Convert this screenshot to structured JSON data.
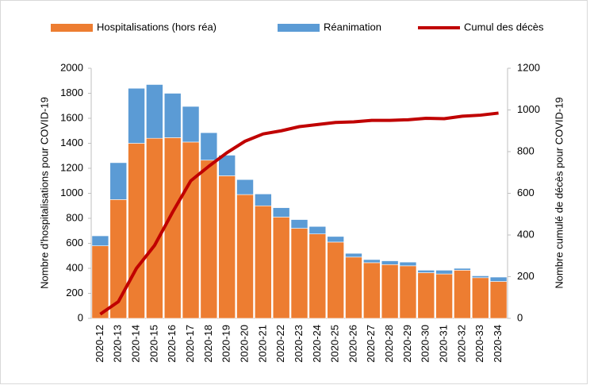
{
  "chart_data": {
    "type": "combo",
    "categories": [
      "2020-12",
      "2020-13",
      "2020-14",
      "2020-15",
      "2020-16",
      "2020-17",
      "2020-18",
      "2020-19",
      "2020-20",
      "2020-21",
      "2020-22",
      "2020-23",
      "2020-24",
      "2020-25",
      "2020-26",
      "2020-27",
      "2020-28",
      "2020-29",
      "2020-30",
      "2020-31",
      "2020-32",
      "2020-33",
      "2020-34"
    ],
    "series": [
      {
        "name": "Hospitalisations (hors réa)",
        "type": "bar",
        "color": "#ed7d31",
        "values": [
          580,
          950,
          1400,
          1440,
          1445,
          1410,
          1265,
          1140,
          990,
          900,
          810,
          720,
          675,
          610,
          490,
          445,
          430,
          420,
          365,
          355,
          385,
          325,
          295
        ]
      },
      {
        "name": "Réanimation",
        "type": "bar",
        "color": "#5b9bd5",
        "values": [
          80,
          295,
          440,
          430,
          355,
          285,
          220,
          165,
          120,
          95,
          75,
          70,
          60,
          45,
          30,
          25,
          30,
          30,
          20,
          30,
          15,
          15,
          35
        ]
      },
      {
        "name": "Cumul des décès",
        "type": "line",
        "axis": "y2",
        "color": "#c00000",
        "values": [
          20,
          80,
          240,
          350,
          510,
          660,
          730,
          795,
          850,
          885,
          900,
          920,
          930,
          940,
          943,
          950,
          950,
          953,
          960,
          958,
          970,
          975,
          985
        ]
      }
    ],
    "y_label": "Nombre d'hospitalisations pour COVID-19",
    "y2_label": "Nombre cumulé de décès pour COVID-19",
    "ylim": [
      0,
      2000
    ],
    "yticks": [
      0,
      200,
      400,
      600,
      800,
      1000,
      1200,
      1400,
      1600,
      1800,
      2000
    ],
    "y2lim": [
      0,
      1200
    ],
    "y2ticks": [
      0,
      200,
      400,
      600,
      800,
      1000,
      1200
    ],
    "stacked": true,
    "grid": false,
    "legend": "top"
  }
}
